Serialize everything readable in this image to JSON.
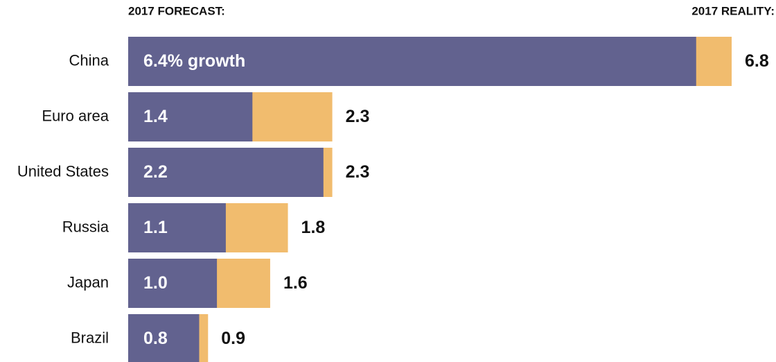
{
  "chart_data": {
    "type": "bar",
    "orientation": "horizontal",
    "categories": [
      "China",
      "Euro area",
      "United States",
      "Russia",
      "Japan",
      "Brazil"
    ],
    "series": [
      {
        "name": "2017 FORECAST:",
        "color": "#62628f",
        "values": [
          6.4,
          1.4,
          2.2,
          1.1,
          1.0,
          0.8
        ],
        "value_labels": [
          "6.4% growth",
          "1.4",
          "2.2",
          "1.1",
          "1.0",
          "0.8"
        ]
      },
      {
        "name": "2017 REALITY:",
        "color": "#f1bc6e",
        "values": [
          6.8,
          2.3,
          2.3,
          1.8,
          1.6,
          0.9
        ]
      }
    ]
  }
}
